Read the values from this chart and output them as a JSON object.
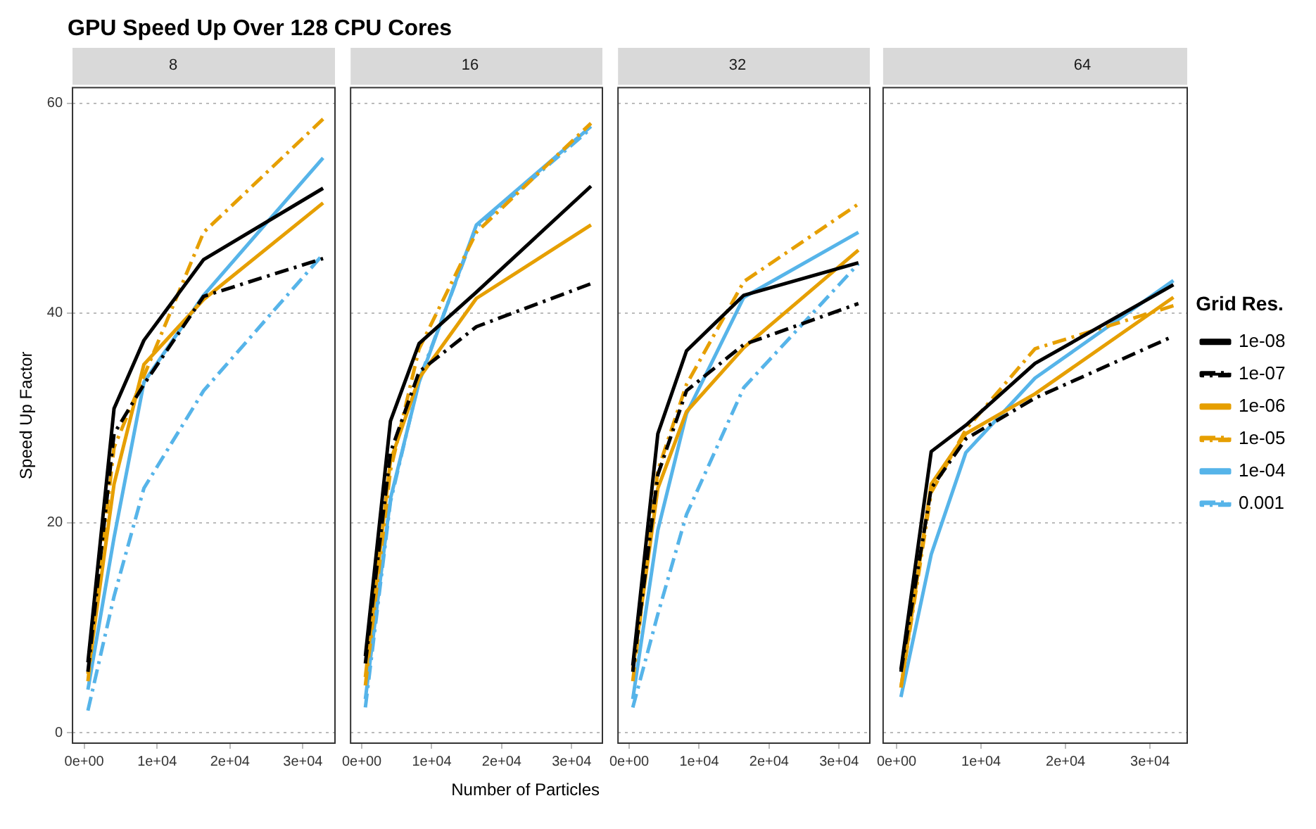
{
  "chart_data": [
    {
      "type": "line",
      "title": "GPU Speed Up Over 128 CPU Cores",
      "subtitle": "8",
      "ylabel": "Speed Up Factor",
      "x": [
        512,
        4096,
        8192,
        16384,
        32768
      ],
      "xlim": [
        -1600,
        34400
      ],
      "xticks": [
        {
          "value": 0,
          "label": "0e+00"
        },
        {
          "value": 10000,
          "label": "1e+04"
        },
        {
          "value": 20000,
          "label": "2e+04"
        },
        {
          "value": 30000,
          "label": "3e+04"
        }
      ],
      "ylim": [
        -1,
        61.5
      ],
      "yticks": [
        0,
        20,
        40,
        60
      ],
      "grid": "y",
      "legend": false,
      "series": [
        {
          "color": "#000000",
          "line_style": "solid",
          "values": [
            6.7,
            30.9,
            37.4,
            45.1,
            51.9
          ]
        },
        {
          "color": "#000000",
          "line_style": "dashed",
          "values": [
            5.8,
            28.5,
            33.2,
            41.6,
            45.2
          ]
        },
        {
          "color": "#e69f00",
          "line_style": "solid",
          "values": [
            5.6,
            23.7,
            35.1,
            41.3,
            50.5
          ]
        },
        {
          "color": "#e69f00",
          "line_style": "dashed",
          "values": [
            4.9,
            27.2,
            34,
            47.7,
            58.5
          ]
        },
        {
          "color": "#56b4e9",
          "line_style": "solid",
          "values": [
            4.1,
            18.6,
            33.4,
            41.7,
            54.8
          ]
        },
        {
          "color": "#56b4e9",
          "line_style": "dashed",
          "values": [
            2.1,
            13,
            23.3,
            32.6,
            45.6
          ]
        }
      ]
    },
    {
      "type": "line",
      "subtitle": "16",
      "xlabel": "Number of Particles",
      "x": [
        512,
        4096,
        8192,
        16384,
        32768
      ],
      "xlim": [
        -1600,
        34400
      ],
      "xticks": [
        {
          "value": 0,
          "label": "0e+00"
        },
        {
          "value": 10000,
          "label": "1e+04"
        },
        {
          "value": 20000,
          "label": "2e+04"
        },
        {
          "value": 30000,
          "label": "3e+04"
        }
      ],
      "ylim": [
        -1,
        61.5
      ],
      "yticks": [
        0,
        20,
        40,
        60
      ],
      "grid": "y",
      "legend": false,
      "tick_labels": "x",
      "series": [
        {
          "color": "#000000",
          "line_style": "solid",
          "values": [
            7.3,
            29.7,
            37.1,
            42,
            52.1
          ]
        },
        {
          "color": "#000000",
          "line_style": "dashed",
          "values": [
            6.6,
            26.7,
            34.4,
            38.7,
            42.8
          ]
        },
        {
          "color": "#e69f00",
          "line_style": "solid",
          "values": [
            5.3,
            25.9,
            33.8,
            41.4,
            48.4
          ]
        },
        {
          "color": "#e69f00",
          "line_style": "dashed",
          "values": [
            4.5,
            25,
            36.6,
            47.7,
            58.1
          ]
        },
        {
          "color": "#56b4e9",
          "line_style": "solid",
          "values": [
            3.2,
            22.3,
            33.4,
            48.4,
            57.8
          ]
        },
        {
          "color": "#56b4e9",
          "line_style": "dashed",
          "values": [
            2.4,
            22,
            33.6,
            48.2,
            57.6
          ]
        }
      ]
    },
    {
      "type": "line",
      "subtitle": "32",
      "x": [
        512,
        4096,
        8192,
        16384,
        32768
      ],
      "xlim": [
        -1600,
        34400
      ],
      "xticks": [
        {
          "value": 0,
          "label": "0e+00"
        },
        {
          "value": 10000,
          "label": "1e+04"
        },
        {
          "value": 20000,
          "label": "2e+04"
        },
        {
          "value": 30000,
          "label": "3e+04"
        }
      ],
      "ylim": [
        -1,
        61.5
      ],
      "yticks": [
        0,
        20,
        40,
        60
      ],
      "grid": "y",
      "legend": false,
      "tick_labels": "x",
      "series": [
        {
          "color": "#000000",
          "line_style": "solid",
          "values": [
            6.4,
            28.5,
            36.4,
            41.7,
            44.8
          ]
        },
        {
          "color": "#000000",
          "line_style": "dashed",
          "values": [
            5.8,
            24.6,
            32.6,
            37,
            40.9
          ]
        },
        {
          "color": "#e69f00",
          "line_style": "solid",
          "values": [
            6,
            23.3,
            30.6,
            36.7,
            46
          ]
        },
        {
          "color": "#e69f00",
          "line_style": "dashed",
          "values": [
            4.9,
            25,
            33.2,
            43,
            50.4
          ]
        },
        {
          "color": "#56b4e9",
          "line_style": "solid",
          "values": [
            3.2,
            19.3,
            30.4,
            41.5,
            47.7
          ]
        },
        {
          "color": "#56b4e9",
          "line_style": "dashed",
          "values": [
            2.4,
            11.3,
            20.8,
            32.9,
            44.7
          ]
        }
      ]
    },
    {
      "type": "line",
      "subtitle": "64",
      "x": [
        512,
        4096,
        8192,
        16384,
        32768
      ],
      "xlim": [
        -1600,
        34400
      ],
      "xticks": [
        {
          "value": 0,
          "label": "0e+00"
        },
        {
          "value": 10000,
          "label": "1e+04"
        },
        {
          "value": 20000,
          "label": "2e+04"
        },
        {
          "value": 30000,
          "label": "3e+04"
        }
      ],
      "ylim": [
        -1,
        61.5
      ],
      "yticks": [
        0,
        20,
        40,
        60
      ],
      "grid": "y",
      "legend": "right",
      "legend_title": "Grid Res.",
      "tick_labels": "x",
      "series": [
        {
          "name": "1e-08",
          "color": "#000000",
          "line_style": "solid",
          "values": [
            6,
            26.8,
            29.3,
            35.2,
            42.7
          ]
        },
        {
          "name": "1e-07",
          "color": "#000000",
          "line_style": "dashed",
          "values": [
            5.8,
            23.3,
            28,
            31.9,
            37.8
          ]
        },
        {
          "name": "1e-06",
          "color": "#e69f00",
          "line_style": "solid",
          "values": [
            4.3,
            23.7,
            28.5,
            32.3,
            41.5
          ]
        },
        {
          "name": "1e-05",
          "color": "#e69f00",
          "line_style": "dashed",
          "values": [
            4.3,
            22.9,
            28.9,
            36.6,
            40.7
          ]
        },
        {
          "name": "1e-04",
          "color": "#56b4e9",
          "line_style": "solid",
          "values": [
            3.4,
            17,
            26.7,
            33.8,
            43.1
          ]
        },
        {
          "name": "0.001",
          "color": "#56b4e9",
          "line_style": "dashed",
          "values": [
            null,
            null,
            null,
            null,
            null
          ]
        }
      ]
    }
  ]
}
